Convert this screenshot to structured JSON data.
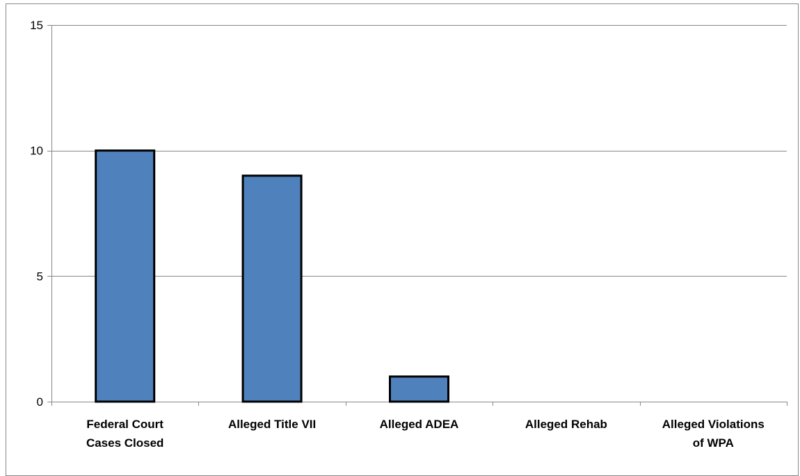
{
  "chart_data": {
    "type": "bar",
    "title": "",
    "xlabel": "",
    "ylabel": "",
    "categories": [
      [
        "Federal  Court",
        "Cases Closed"
      ],
      [
        "Alleged Title VII"
      ],
      [
        "Alleged ADEA"
      ],
      [
        "Alleged Rehab"
      ],
      [
        "Alleged Violations",
        "of WPA"
      ]
    ],
    "values": [
      10,
      9,
      1,
      0,
      0
    ],
    "ylim": [
      0,
      15
    ],
    "yticks": [
      0,
      5,
      10,
      15
    ],
    "grid": true,
    "legend": "none",
    "colors": {
      "bar_fill": "#4f81bd",
      "bar_stroke": "#000000",
      "gridline": "#868686",
      "axis": "#868686"
    }
  }
}
